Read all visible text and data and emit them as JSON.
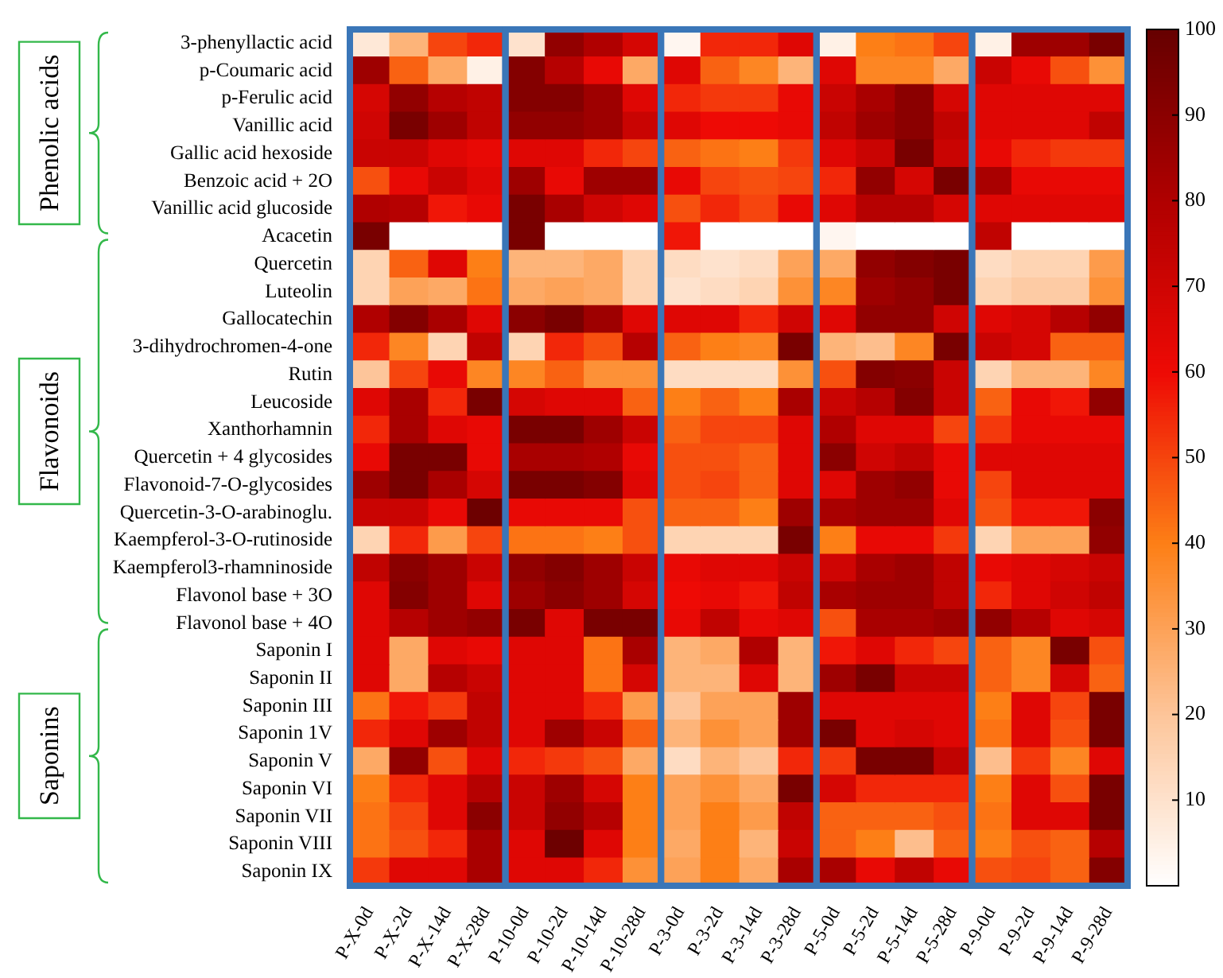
{
  "chart_data": {
    "type": "heatmap",
    "categories": [
      "P-X-0d",
      "P-X-2d",
      "P-X-14d",
      "P-X-28d",
      "P-10-0d",
      "P-10-2d",
      "P-10-14d",
      "P-10-28d",
      "P-3-0d",
      "P-3-2d",
      "P-3-14d",
      "P-3-28d",
      "P-5-0d",
      "P-5-2d",
      "P-5-14d",
      "P-5-28d",
      "P-9-0d",
      "P-9-2d",
      "P-9-14d",
      "P-9-28d"
    ],
    "y_categories": [
      "3-phenyllactic acid",
      "p-Coumaric acid",
      "p-Ferulic acid",
      "Vanillic acid",
      "Gallic acid hexoside",
      "Benzoic acid + 2O",
      "Vanillic acid glucoside",
      "Acacetin",
      "Quercetin",
      "Luteolin",
      "Gallocatechin",
      "3-dihydrochromen-4-one",
      "Rutin",
      "Leucoside",
      "Xanthorhamnin",
      "Quercetin + 4 glycosides",
      "Flavonoid-7-O-glycosides",
      "Quercetin-3-O-arabinoglu.",
      "Kaempferol-3-O-rutinoside",
      "Kaempferol3-rhamninoside",
      "Flavonol base + 3O",
      "Flavonol base + 4O",
      "Saponin I",
      "Saponin II",
      "Saponin III",
      "Saponin 1V",
      "Saponin V",
      "Saponin VI",
      "Saponin VII",
      "Saponin VIII",
      "Saponin IX"
    ],
    "cells": [
      [
        8,
        25,
        50,
        55,
        10,
        88,
        80,
        68,
        3,
        55,
        55,
        65,
        5,
        40,
        42,
        50,
        5,
        85,
        85,
        95
      ],
      [
        85,
        45,
        28,
        5,
        92,
        78,
        62,
        28,
        65,
        45,
        38,
        25,
        65,
        38,
        38,
        28,
        72,
        62,
        48,
        35
      ],
      [
        68,
        88,
        78,
        75,
        92,
        92,
        85,
        65,
        55,
        52,
        52,
        62,
        72,
        82,
        90,
        68,
        65,
        65,
        65,
        65
      ],
      [
        70,
        95,
        85,
        75,
        88,
        88,
        85,
        72,
        65,
        60,
        60,
        62,
        75,
        85,
        90,
        75,
        65,
        65,
        65,
        75
      ],
      [
        72,
        72,
        65,
        62,
        65,
        65,
        55,
        50,
        45,
        42,
        40,
        52,
        65,
        72,
        95,
        72,
        62,
        55,
        52,
        52
      ],
      [
        48,
        62,
        72,
        65,
        85,
        62,
        85,
        85,
        62,
        50,
        48,
        50,
        55,
        88,
        68,
        95,
        82,
        62,
        62,
        62
      ],
      [
        80,
        78,
        58,
        62,
        95,
        82,
        70,
        65,
        48,
        55,
        50,
        62,
        65,
        78,
        78,
        68,
        65,
        65,
        65,
        65
      ],
      [
        95,
        0,
        0,
        0,
        95,
        0,
        0,
        0,
        58,
        0,
        0,
        0,
        3,
        0,
        0,
        0,
        75,
        0,
        0,
        0
      ],
      [
        15,
        45,
        65,
        40,
        25,
        25,
        28,
        15,
        12,
        10,
        12,
        30,
        28,
        88,
        92,
        95,
        12,
        15,
        15,
        32
      ],
      [
        15,
        30,
        28,
        42,
        28,
        30,
        28,
        15,
        10,
        12,
        15,
        35,
        38,
        85,
        88,
        95,
        15,
        18,
        18,
        35
      ],
      [
        80,
        92,
        82,
        65,
        90,
        95,
        85,
        65,
        65,
        65,
        55,
        70,
        65,
        88,
        88,
        70,
        65,
        68,
        78,
        88
      ],
      [
        55,
        38,
        15,
        75,
        15,
        55,
        48,
        78,
        45,
        40,
        38,
        95,
        25,
        22,
        38,
        95,
        72,
        68,
        45,
        45
      ],
      [
        20,
        50,
        62,
        38,
        38,
        45,
        35,
        35,
        12,
        12,
        12,
        35,
        48,
        92,
        90,
        72,
        15,
        25,
        25,
        38
      ],
      [
        65,
        82,
        55,
        95,
        68,
        65,
        65,
        45,
        40,
        45,
        40,
        82,
        72,
        78,
        92,
        72,
        45,
        62,
        58,
        88
      ],
      [
        55,
        82,
        65,
        62,
        95,
        95,
        85,
        72,
        45,
        50,
        50,
        65,
        80,
        65,
        65,
        50,
        52,
        62,
        62,
        62
      ],
      [
        62,
        95,
        95,
        62,
        82,
        82,
        80,
        62,
        48,
        48,
        45,
        65,
        90,
        70,
        75,
        62,
        65,
        65,
        65,
        65
      ],
      [
        85,
        95,
        82,
        68,
        95,
        95,
        92,
        65,
        48,
        50,
        45,
        65,
        65,
        85,
        88,
        62,
        50,
        65,
        65,
        65
      ],
      [
        72,
        72,
        62,
        98,
        62,
        62,
        62,
        48,
        45,
        45,
        40,
        85,
        82,
        85,
        85,
        65,
        48,
        58,
        58,
        90
      ],
      [
        15,
        55,
        32,
        50,
        42,
        42,
        40,
        48,
        15,
        15,
        15,
        95,
        40,
        62,
        62,
        52,
        15,
        30,
        30,
        88
      ],
      [
        75,
        90,
        85,
        72,
        88,
        92,
        85,
        72,
        62,
        65,
        65,
        72,
        70,
        82,
        85,
        75,
        62,
        65,
        68,
        72
      ],
      [
        65,
        92,
        85,
        65,
        85,
        90,
        85,
        68,
        60,
        62,
        58,
        75,
        82,
        85,
        85,
        75,
        55,
        65,
        70,
        75
      ],
      [
        65,
        78,
        85,
        88,
        95,
        65,
        95,
        95,
        62,
        75,
        62,
        65,
        48,
        82,
        82,
        85,
        88,
        78,
        65,
        68
      ],
      [
        65,
        28,
        65,
        62,
        65,
        65,
        42,
        82,
        25,
        28,
        80,
        25,
        58,
        65,
        55,
        50,
        45,
        38,
        95,
        48
      ],
      [
        65,
        28,
        78,
        72,
        65,
        65,
        42,
        68,
        25,
        25,
        65,
        25,
        85,
        95,
        72,
        72,
        45,
        38,
        68,
        45
      ],
      [
        42,
        58,
        52,
        75,
        65,
        65,
        55,
        32,
        20,
        30,
        30,
        85,
        65,
        65,
        65,
        65,
        40,
        65,
        50,
        95
      ],
      [
        55,
        65,
        85,
        75,
        65,
        85,
        72,
        45,
        25,
        35,
        30,
        85,
        95,
        65,
        68,
        65,
        42,
        65,
        48,
        95
      ],
      [
        28,
        88,
        48,
        65,
        55,
        52,
        48,
        28,
        12,
        25,
        20,
        55,
        52,
        95,
        95,
        75,
        22,
        52,
        38,
        65
      ],
      [
        40,
        55,
        65,
        78,
        72,
        85,
        68,
        40,
        30,
        35,
        28,
        95,
        68,
        55,
        55,
        55,
        40,
        65,
        48,
        95
      ],
      [
        42,
        50,
        65,
        90,
        72,
        88,
        78,
        40,
        30,
        40,
        32,
        75,
        45,
        45,
        45,
        48,
        42,
        65,
        65,
        95
      ],
      [
        42,
        48,
        55,
        82,
        65,
        98,
        65,
        40,
        28,
        40,
        25,
        72,
        45,
        40,
        22,
        45,
        40,
        48,
        45,
        78
      ],
      [
        52,
        65,
        65,
        82,
        65,
        65,
        55,
        35,
        30,
        40,
        28,
        82,
        82,
        62,
        75,
        62,
        48,
        50,
        45,
        92
      ]
    ],
    "clim": [
      0,
      100
    ],
    "cticks": [
      10,
      20,
      30,
      40,
      50,
      60,
      70,
      80,
      90,
      100
    ],
    "annotations": [
      "Phenolic acids",
      "Flavonoids",
      "Saponins"
    ]
  }
}
